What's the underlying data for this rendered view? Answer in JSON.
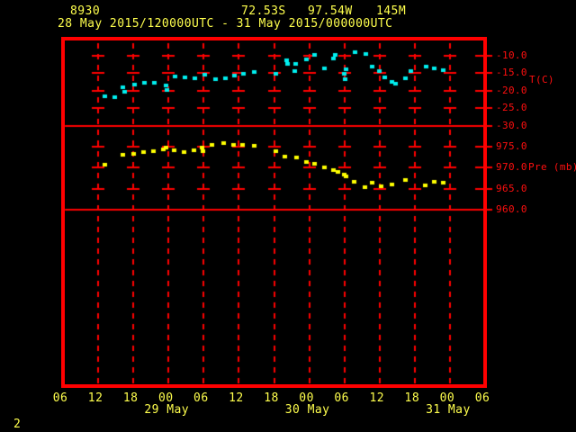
{
  "header": {
    "station_id": "8930",
    "latitude": "72.53S",
    "longitude": "97.54W",
    "elevation": "145M",
    "time_range": "28 May 2015/120000UTC - 31 May 2015/000000UTC"
  },
  "footer": {
    "page_number": "2"
  },
  "colors": {
    "background": "#000000",
    "frame": "#ff0000",
    "grid": "#ff0000",
    "axis_label_text": "#ff0f0f",
    "header_text": "#ffff4d",
    "temperature_series": "#00efef",
    "pressure_series": "#ffff00"
  },
  "chart_data": {
    "type": "scatter",
    "x_axis": {
      "hours_start": 0,
      "hours_end": 72,
      "tick_interval_hours": 6,
      "hour_labels": [
        "06",
        "12",
        "18",
        "00",
        "06",
        "12",
        "18",
        "00",
        "06",
        "12",
        "18",
        "00",
        "06"
      ],
      "date_labels": [
        {
          "text": "29 May",
          "tick_index": 3
        },
        {
          "text": "30 May",
          "tick_index": 7
        },
        {
          "text": "31 May",
          "tick_index": 11
        }
      ]
    },
    "panels": [
      {
        "name": "temperature",
        "ylabel": "T(C)",
        "ylim": [
          -30,
          -5
        ],
        "ticks": [
          -10,
          -15,
          -20,
          -25,
          -30
        ],
        "tick_labels": [
          "-10.0",
          "-15.0",
          "-20.0",
          "-25.0",
          "-30.0"
        ],
        "crossbar_levels": [
          -10,
          -15,
          -20,
          -25
        ],
        "series": {
          "name": "temperature",
          "color": "#00efef",
          "points": [
            [
              7.0,
              -21.6
            ],
            [
              8.7,
              -21.9
            ],
            [
              10.2,
              -19.0
            ],
            [
              10.4,
              -20.3
            ],
            [
              12.1,
              -18.4
            ],
            [
              13.8,
              -17.9
            ],
            [
              15.5,
              -17.9
            ],
            [
              17.5,
              -18.6
            ],
            [
              17.6,
              -19.9
            ],
            [
              19.0,
              -16.0
            ],
            [
              20.7,
              -16.3
            ],
            [
              22.4,
              -16.5
            ],
            [
              24.1,
              -15.4
            ],
            [
              25.9,
              -16.8
            ],
            [
              27.6,
              -16.5
            ],
            [
              29.2,
              -15.8
            ],
            [
              30.7,
              -15.3
            ],
            [
              32.5,
              -14.7
            ],
            [
              36.2,
              -15.3
            ],
            [
              38.1,
              -11.3
            ],
            [
              38.2,
              -12.4
            ],
            [
              39.5,
              -14.6
            ],
            [
              39.6,
              -12.4
            ],
            [
              41.5,
              -11.2
            ],
            [
              42.8,
              -9.9
            ],
            [
              44.5,
              -13.7
            ],
            [
              46.1,
              -10.9
            ],
            [
              46.4,
              -9.9
            ],
            [
              47.9,
              -15.3
            ],
            [
              48.0,
              -16.8
            ],
            [
              48.2,
              -13.9
            ],
            [
              49.8,
              -9.1
            ],
            [
              51.6,
              -9.6
            ],
            [
              52.7,
              -13.2
            ],
            [
              53.9,
              -14.5
            ],
            [
              54.8,
              -16.3
            ],
            [
              56.1,
              -17.6
            ],
            [
              56.7,
              -18.1
            ],
            [
              58.4,
              -16.5
            ],
            [
              59.3,
              -14.5
            ],
            [
              61.8,
              -13.2
            ],
            [
              63.3,
              -13.7
            ],
            [
              64.8,
              -14.3
            ]
          ]
        }
      },
      {
        "name": "pressure",
        "ylabel": "Pre (mb)",
        "ylim": [
          960,
          980
        ],
        "ticks": [
          975,
          970,
          965,
          960
        ],
        "tick_labels": [
          "975.0",
          "970.0",
          "965.0",
          "960.0"
        ],
        "crossbar_levels": [
          975,
          970,
          965
        ],
        "series": {
          "name": "pressure",
          "color": "#ffff00",
          "points": [
            [
              7.0,
              970.6
            ],
            [
              10.2,
              973.1
            ],
            [
              11.9,
              973.3
            ],
            [
              13.6,
              973.6
            ],
            [
              15.3,
              973.9
            ],
            [
              17.0,
              974.4
            ],
            [
              17.5,
              974.7
            ],
            [
              18.9,
              974.2
            ],
            [
              20.5,
              973.7
            ],
            [
              22.2,
              974.2
            ],
            [
              23.6,
              974.8
            ],
            [
              23.8,
              973.9
            ],
            [
              25.4,
              975.4
            ],
            [
              27.4,
              975.8
            ],
            [
              29.0,
              975.4
            ],
            [
              30.6,
              975.4
            ],
            [
              32.5,
              975.2
            ],
            [
              36.2,
              973.9
            ],
            [
              37.8,
              972.6
            ],
            [
              39.7,
              972.3
            ],
            [
              41.4,
              971.4
            ],
            [
              42.8,
              970.9
            ],
            [
              44.5,
              970.1
            ],
            [
              46.0,
              969.4
            ],
            [
              46.8,
              969.0
            ],
            [
              47.9,
              968.3
            ],
            [
              48.2,
              967.9
            ],
            [
              49.6,
              966.7
            ],
            [
              51.5,
              965.4
            ],
            [
              52.7,
              966.4
            ],
            [
              54.2,
              965.6
            ],
            [
              56.1,
              966.0
            ],
            [
              58.3,
              967.1
            ],
            [
              61.7,
              965.8
            ],
            [
              63.3,
              966.6
            ],
            [
              64.8,
              966.4
            ]
          ]
        }
      }
    ]
  }
}
